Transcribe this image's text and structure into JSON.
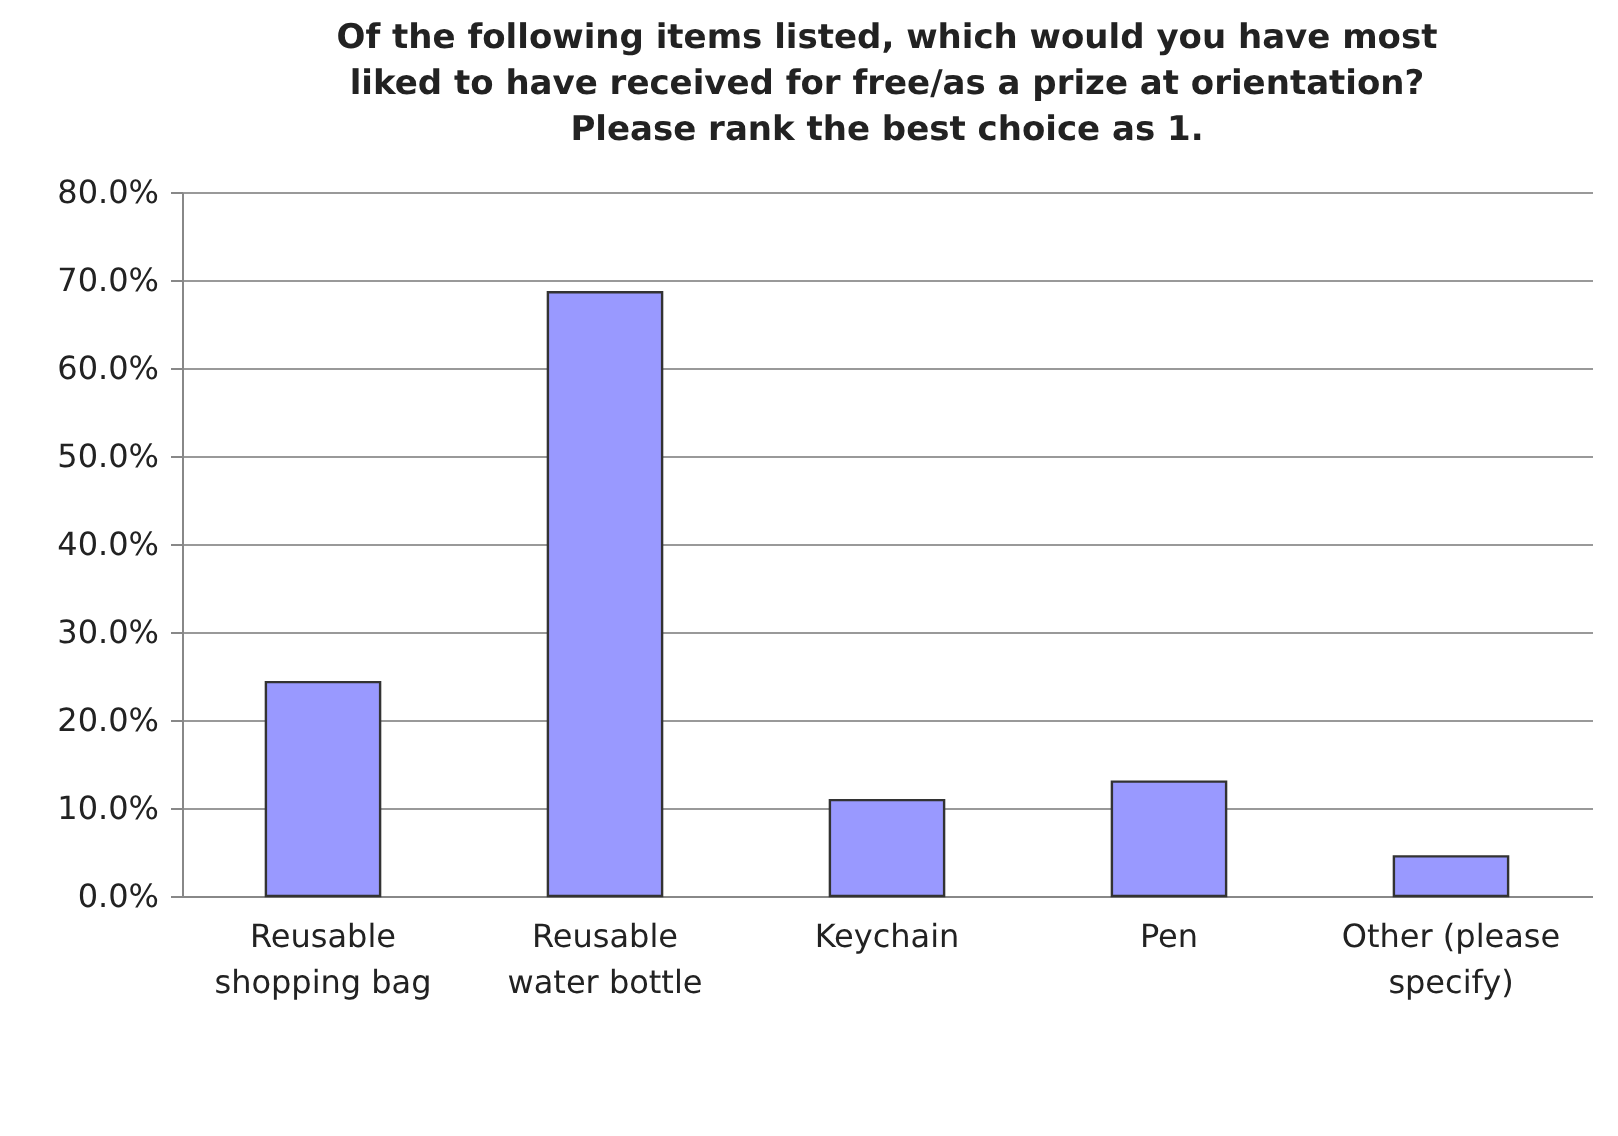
{
  "chart_data": {
    "type": "bar",
    "title": "Of the following items listed, which would you have most liked to have received for free/as a prize at orientation? Please rank the best choice as 1.",
    "categories": [
      "Reusable shopping bag",
      "Reusable water bottle",
      "Keychain",
      "Pen",
      "Other (please specify)"
    ],
    "values": [
      24.3,
      68.6,
      10.9,
      13.0,
      4.5
    ],
    "color": "#9999ff",
    "ylim": [
      0,
      80
    ],
    "yticks": [
      {
        "value": 0,
        "label": "0.0%"
      },
      {
        "value": 10,
        "label": "10.0%"
      },
      {
        "value": 20,
        "label": "20.0%"
      },
      {
        "value": 30,
        "label": "30.0%"
      },
      {
        "value": 40,
        "label": "40.0%"
      },
      {
        "value": 50,
        "label": "50.0%"
      },
      {
        "value": 60,
        "label": "60.0%"
      },
      {
        "value": 70,
        "label": "70.0%"
      },
      {
        "value": 80,
        "label": "80.0%"
      }
    ],
    "grid": "y"
  }
}
